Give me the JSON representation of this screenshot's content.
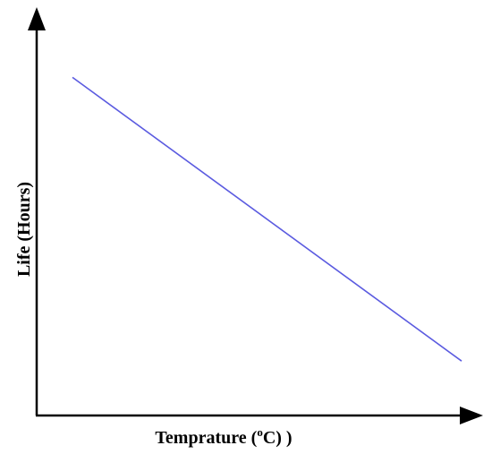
{
  "chart_data": {
    "type": "line",
    "xlabel": "Temprature (oC)  )",
    "xlabel_parts": {
      "before": "Temprature (",
      "superscript": "o",
      "after": "C)  )"
    },
    "ylabel": "Life (Hours)",
    "xlim": [
      0,
      100
    ],
    "ylim": [
      0,
      100
    ],
    "grid": false,
    "series": [
      {
        "x": [
          8,
          95
        ],
        "y": [
          87,
          14
        ]
      }
    ],
    "colors": {
      "line": "#5B5BE0",
      "axes": "#000000"
    }
  }
}
